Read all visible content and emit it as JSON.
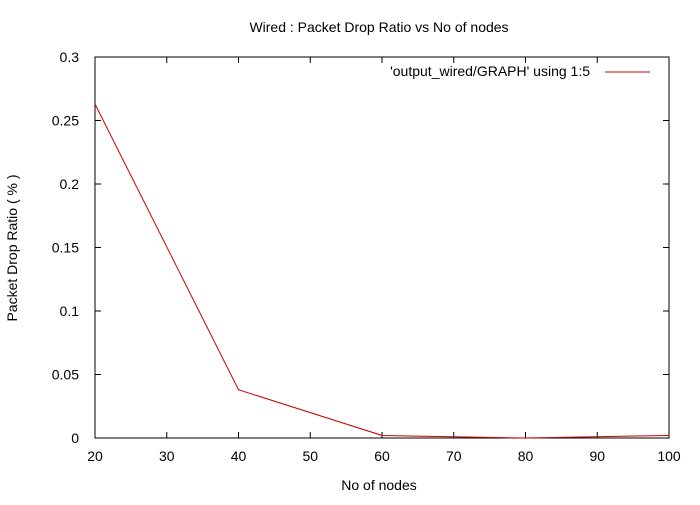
{
  "chart_data": {
    "type": "line",
    "title": "Wired : Packet Drop Ratio vs No of nodes",
    "xlabel": "No of nodes",
    "ylabel": "Packet Drop Ratio ( % )",
    "xlim": [
      20,
      100
    ],
    "ylim": [
      0,
      0.3
    ],
    "x_ticks": [
      20,
      30,
      40,
      50,
      60,
      70,
      80,
      90,
      100
    ],
    "x_tick_labels": [
      "20",
      "30",
      "40",
      "50",
      "60",
      "70",
      "80",
      "90",
      "100"
    ],
    "y_ticks": [
      0,
      0.05,
      0.1,
      0.15,
      0.2,
      0.25,
      0.3
    ],
    "y_tick_labels": [
      "0",
      "0.05",
      "0.1",
      "0.15",
      "0.2",
      "0.25",
      "0.3"
    ],
    "grid": false,
    "legend_position": "top-right",
    "series": [
      {
        "name": "'output_wired/GRAPH' using 1:5",
        "color": "#cc0000",
        "x": [
          20,
          40,
          60,
          80,
          100
        ],
        "y": [
          0.263,
          0.038,
          0.002,
          0.0,
          0.002
        ]
      }
    ]
  }
}
